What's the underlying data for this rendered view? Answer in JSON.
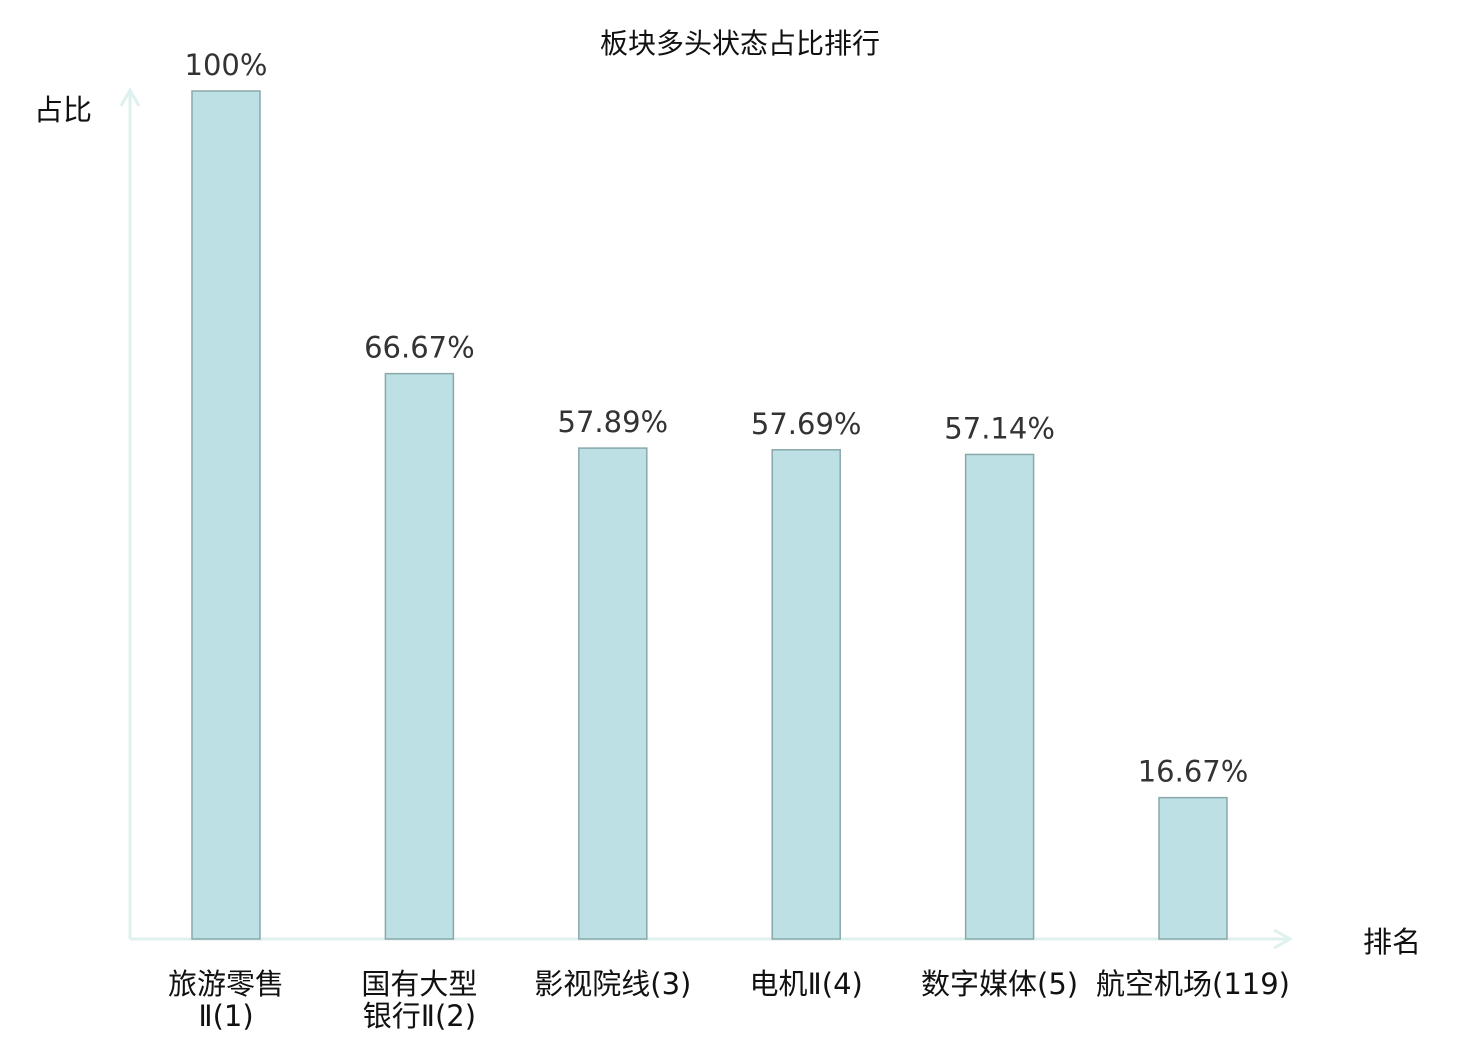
{
  "chart_data": {
    "type": "bar",
    "title": "板块多头状态占比排行",
    "ylabel": "占比",
    "xlabel": "排名",
    "ylim": [
      0,
      100
    ],
    "grid": false,
    "categories": [
      {
        "lines": [
          "旅游零售",
          "Ⅱ(1)"
        ],
        "highlight": false
      },
      {
        "lines": [
          "国有大型",
          "银行Ⅱ(2)"
        ],
        "highlight": false
      },
      {
        "lines": [
          "影视院线(3)"
        ],
        "highlight": false
      },
      {
        "lines": [
          "电机Ⅱ(4)"
        ],
        "highlight": false
      },
      {
        "lines": [
          "数字媒体(5)"
        ],
        "highlight": false
      },
      {
        "lines": [
          "航空机场(119)"
        ],
        "highlight": true
      }
    ],
    "values": [
      100,
      66.67,
      57.89,
      57.69,
      57.14,
      16.67
    ],
    "value_labels": [
      "100%",
      "66.67%",
      "57.89%",
      "57.69%",
      "57.14%",
      "16.67%"
    ],
    "colors": {
      "bar_fill": "#bce0e3",
      "bar_stroke": "#8aa8aa",
      "axis": "#dff1ef",
      "highlight": "#e8141c",
      "text": "#111111"
    }
  }
}
